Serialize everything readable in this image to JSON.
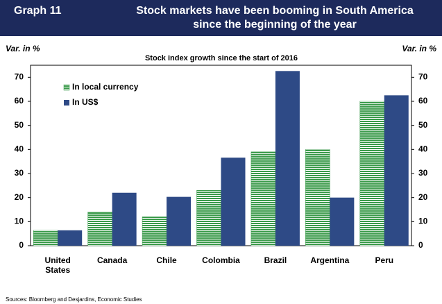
{
  "chart_data": {
    "type": "bar",
    "header_label": "Graph 11",
    "title_lines": [
      "Stock markets have been booming in South America",
      "since the beginning of the year"
    ],
    "subtitle": "Stock index growth since the start of 2016",
    "y_axis_label": "Var. in %",
    "y2_axis_label": "Var. in %",
    "categories": [
      "United States",
      "Canada",
      "Chile",
      "Colombia",
      "Brazil",
      "Argentina",
      "Peru"
    ],
    "series": [
      {
        "name": "In local currency",
        "color": "#3a9a4a",
        "pattern": "stripes",
        "values": [
          6.4,
          14,
          12,
          23,
          39,
          40,
          60
        ]
      },
      {
        "name": "In US$",
        "color": "#2e4a86",
        "values": [
          6.4,
          22,
          20.3,
          36.6,
          72.6,
          20,
          62.5
        ]
      }
    ],
    "ylim": [
      0,
      75
    ],
    "yticks": [
      0,
      10,
      20,
      30,
      40,
      50,
      60,
      70
    ],
    "y2lim": [
      0,
      75
    ],
    "y2ticks": [
      0,
      10,
      20,
      30,
      40,
      50,
      60,
      70
    ],
    "grid": false,
    "legend": "upper left",
    "source": "Sources: Bloomberg and Desjardins, Economic Studies"
  }
}
